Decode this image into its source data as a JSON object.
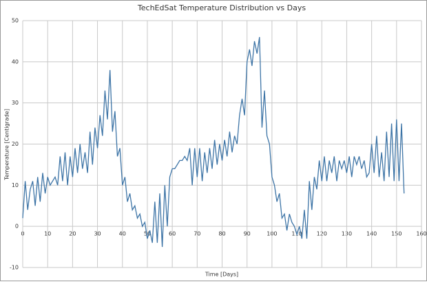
{
  "chart_data": {
    "type": "line",
    "title": "TechEdSat Temperature Distribution vs Days",
    "x_label": "Time [Days]",
    "y_label": "Temperature [Centigrade]",
    "color": "#3d74a6",
    "grid": true,
    "xlim": [
      0,
      160
    ],
    "xticks": [
      0,
      10,
      20,
      30,
      40,
      50,
      60,
      70,
      80,
      90,
      100,
      110,
      120,
      130,
      140,
      150,
      160
    ],
    "ylim": [
      -10,
      50
    ],
    "yticks": [
      -10,
      0,
      10,
      20,
      30,
      40,
      50
    ],
    "x": [
      0,
      1,
      2,
      3,
      4,
      5,
      6,
      7,
      8,
      9,
      10,
      11,
      12,
      13,
      14,
      15,
      16,
      17,
      18,
      19,
      20,
      21,
      22,
      23,
      24,
      25,
      26,
      27,
      28,
      29,
      30,
      31,
      32,
      33,
      34,
      35,
      36,
      37,
      38,
      39,
      40,
      41,
      42,
      43,
      44,
      45,
      46,
      47,
      48,
      49,
      50,
      51,
      52,
      53,
      54,
      55,
      56,
      57,
      58,
      59,
      60,
      61,
      62,
      63,
      64,
      65,
      66,
      67,
      68,
      69,
      70,
      71,
      72,
      73,
      74,
      75,
      76,
      77,
      78,
      79,
      80,
      81,
      82,
      83,
      84,
      85,
      86,
      87,
      88,
      89,
      90,
      91,
      92,
      93,
      94,
      95,
      96,
      97,
      98,
      99,
      100,
      101,
      102,
      103,
      104,
      105,
      106,
      107,
      108,
      109,
      110,
      111,
      112,
      113,
      114,
      115,
      116,
      117,
      118,
      119,
      120,
      121,
      122,
      123,
      124,
      125,
      126,
      127,
      128,
      129,
      130,
      131,
      132,
      133,
      134,
      135,
      136,
      137,
      138,
      139,
      140,
      141,
      142,
      143,
      144,
      145,
      146,
      147,
      148,
      149,
      150,
      151,
      152,
      153
    ],
    "values": [
      2,
      11,
      4,
      9,
      11,
      5,
      12,
      6,
      13,
      8,
      12,
      10,
      11,
      12,
      10,
      17,
      11,
      18,
      10,
      17,
      12,
      19,
      13,
      20,
      14,
      18,
      13,
      23,
      15,
      24,
      19,
      27,
      22,
      33,
      26,
      38,
      23,
      28,
      17,
      19,
      10,
      12,
      6,
      8,
      4,
      5,
      2,
      3,
      0,
      1,
      -3,
      -1,
      -4,
      6,
      -4,
      8,
      -5,
      10,
      0,
      12,
      14,
      14,
      15,
      16,
      16,
      17,
      16,
      19,
      10,
      19,
      12,
      19,
      11,
      18,
      13,
      19,
      14,
      21,
      15,
      20,
      16,
      21,
      17,
      23,
      18,
      22,
      20,
      27,
      31,
      27,
      40,
      43,
      39,
      45,
      42,
      46,
      24,
      33,
      22,
      20,
      12,
      10,
      6,
      8,
      2,
      3,
      -1,
      3,
      1,
      0,
      -2,
      0,
      -3,
      4,
      -3,
      11,
      4,
      12,
      9,
      16,
      11,
      17,
      11,
      16,
      13,
      17,
      11,
      16,
      14,
      16,
      13,
      17,
      12,
      17,
      15,
      17,
      14,
      16,
      12,
      13,
      20,
      13,
      22,
      12,
      18,
      11,
      23,
      12,
      25,
      11,
      26,
      11,
      25,
      8
    ]
  }
}
